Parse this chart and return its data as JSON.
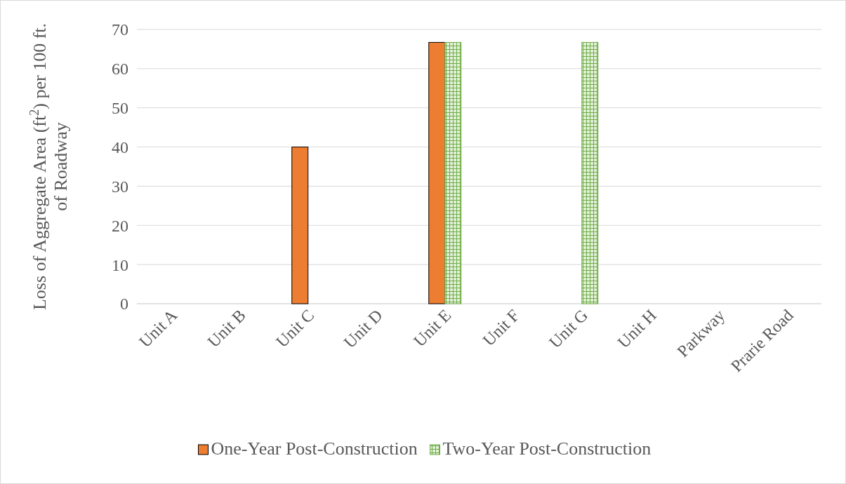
{
  "chart_data": {
    "type": "bar",
    "ylabel": "Loss of Aggregate Area (ft$^{2}$) per 100 ft. of Roadway",
    "categories": [
      "Unit A",
      "Unit B",
      "Unit C",
      "Unit D",
      "Unit E",
      "Unit F",
      "Unit G",
      "Unit H",
      "Parkway",
      "Prarie Road"
    ],
    "series": [
      {
        "name": "One-Year Post-Construction",
        "color": "#ed7d31",
        "values": [
          0,
          0,
          40,
          0,
          66.7,
          0,
          0,
          0,
          0,
          0
        ]
      },
      {
        "name": "Two-Year Post-Construction",
        "color": "#70ad47",
        "values": [
          0,
          0,
          0,
          0,
          66.7,
          0,
          66.7,
          0,
          0,
          0
        ]
      }
    ],
    "ylim": [
      0,
      70
    ],
    "yticks": [
      0,
      10,
      20,
      30,
      40,
      50,
      60,
      70
    ],
    "grid": "y",
    "legend": "bottom"
  }
}
